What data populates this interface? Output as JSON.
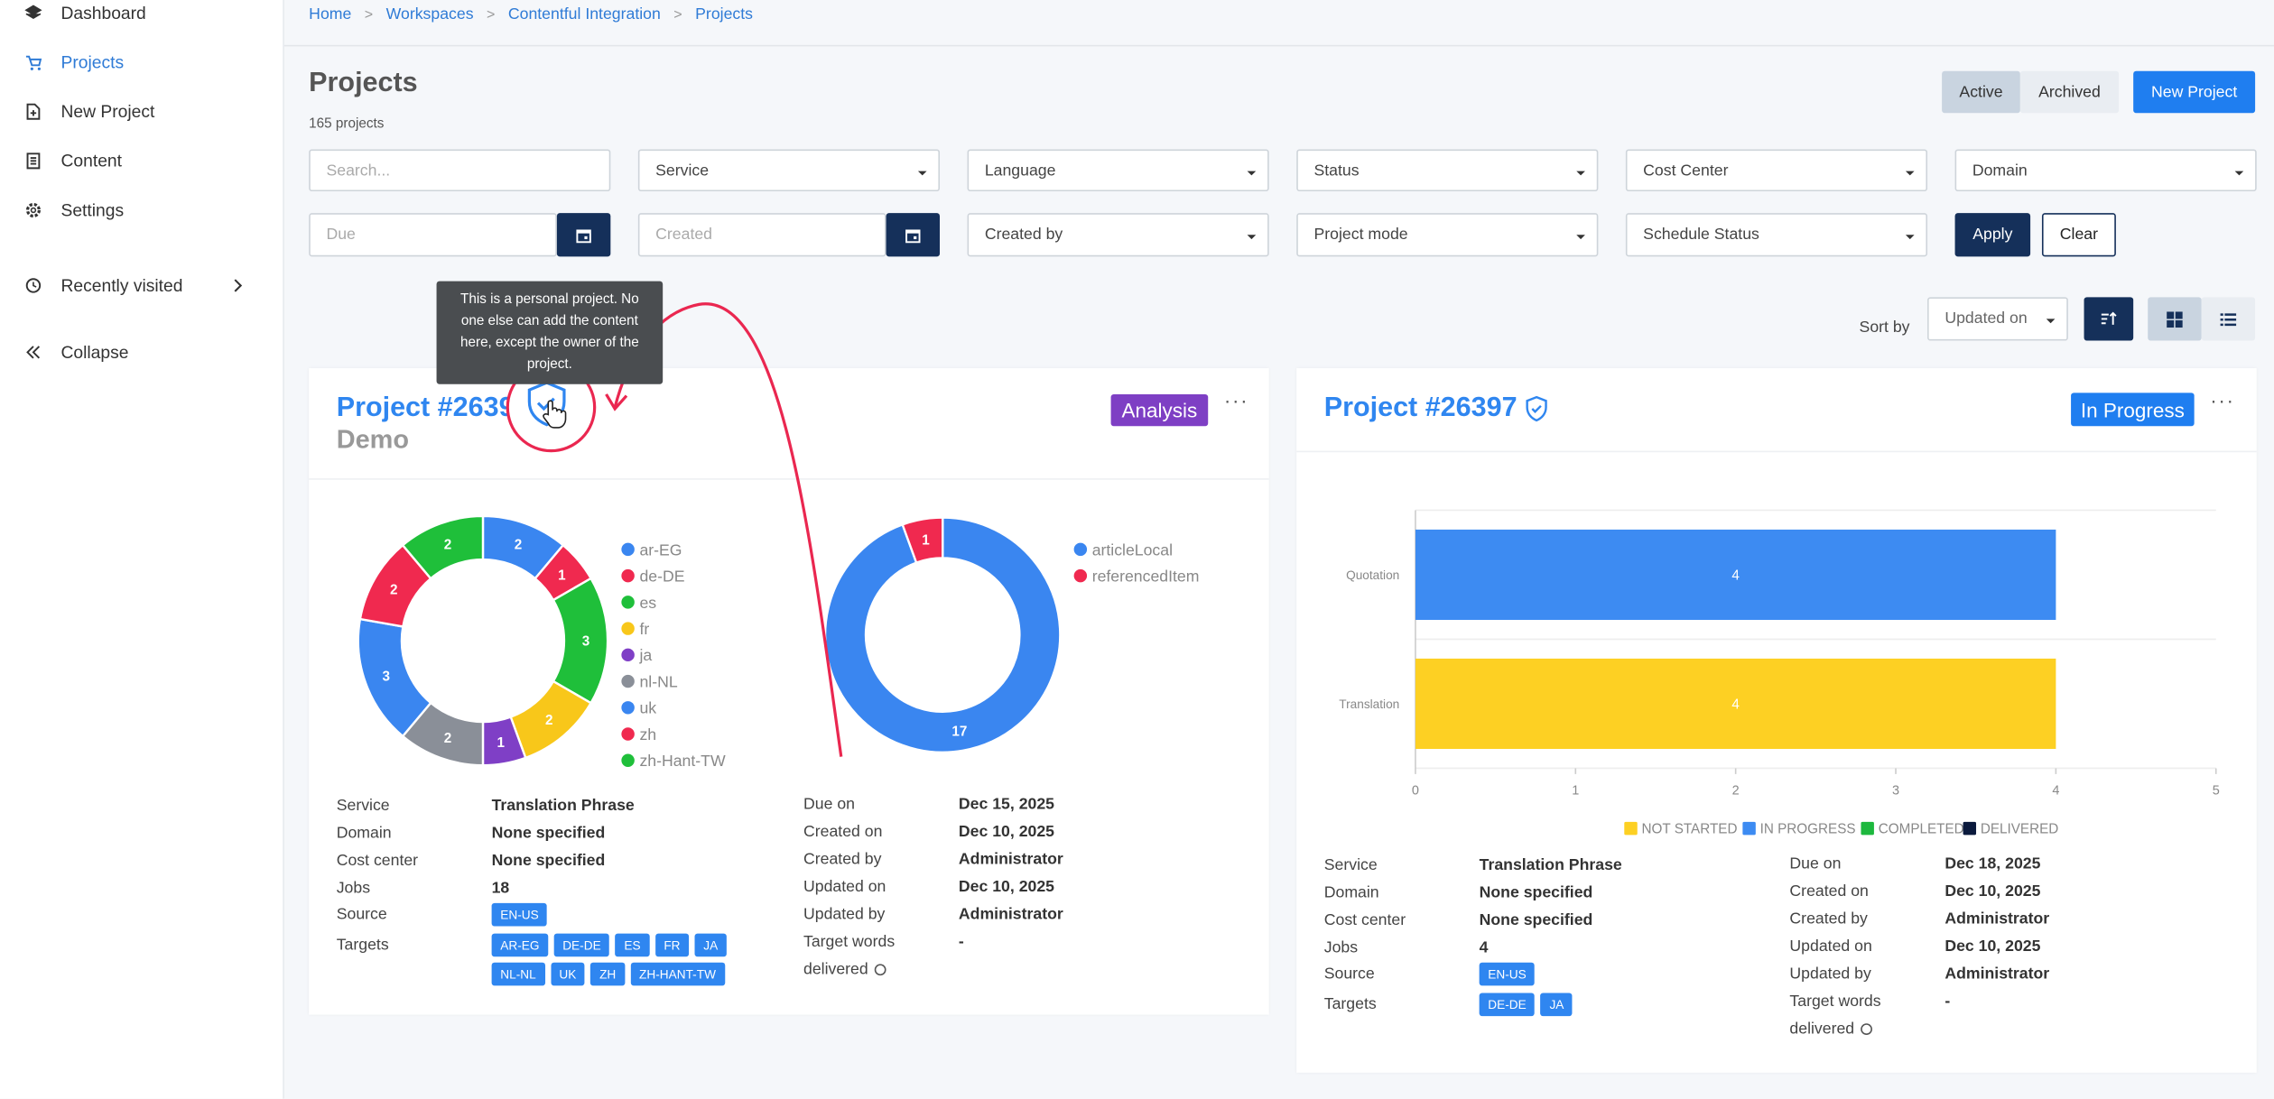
{
  "sidebar": {
    "items": [
      "Dashboard",
      "Projects",
      "New Project",
      "Content",
      "Settings",
      "Recently visited",
      "Collapse"
    ]
  },
  "breadcrumb": [
    "Home",
    "Workspaces",
    "Contentful Integration",
    "Projects"
  ],
  "header": {
    "title": "Projects",
    "count": "165 projects",
    "toggle": [
      "Active",
      "Archived"
    ],
    "new_button": "New Project"
  },
  "filters": {
    "search": "Search...",
    "selects": [
      "Service",
      "Language",
      "Status",
      "Cost Center",
      "Domain"
    ],
    "due": "Due",
    "created": "Created",
    "selects2": [
      "Created by",
      "Project mode",
      "Schedule Status"
    ],
    "apply": "Apply",
    "clear": "Clear"
  },
  "sort": {
    "label": "Sort by",
    "value": "Updated on"
  },
  "tooltip": "This is a personal project. No one else can add the content here, except the owner of the project.",
  "projects": [
    {
      "title": "Project #2639",
      "subtitle": "Demo",
      "status": "Analysis",
      "info": [
        {
          "label": "Service",
          "value": "Translation Phrase"
        },
        {
          "label": "Domain",
          "value": "None specified"
        },
        {
          "label": "Cost center",
          "value": "None specified"
        },
        {
          "label": "Jobs",
          "value": "18"
        },
        {
          "label": "Source",
          "chips": [
            "EN-US"
          ]
        },
        {
          "label": "Targets",
          "chips": [
            "AR-EG",
            "DE-DE",
            "ES",
            "FR",
            "JA",
            "NL-NL",
            "UK",
            "ZH",
            "ZH-HANT-TW"
          ]
        }
      ],
      "dates": [
        {
          "label": "Due on",
          "value": "Dec 15, 2025"
        },
        {
          "label": "Created on",
          "value": "Dec 10, 2025"
        },
        {
          "label": "Created by",
          "value": "Administrator"
        },
        {
          "label": "Updated on",
          "value": "Dec 10, 2025"
        },
        {
          "label": "Updated by",
          "value": "Administrator"
        },
        {
          "label": "Target words delivered",
          "value": "-"
        }
      ]
    },
    {
      "title": "Project #26397",
      "status": "In Progress",
      "info": [
        {
          "label": "Service",
          "value": "Translation Phrase"
        },
        {
          "label": "Domain",
          "value": "None specified"
        },
        {
          "label": "Cost center",
          "value": "None specified"
        },
        {
          "label": "Jobs",
          "value": "4"
        },
        {
          "label": "Source",
          "chips": [
            "EN-US"
          ]
        },
        {
          "label": "Targets",
          "chips": [
            "DE-DE",
            "JA"
          ]
        }
      ],
      "dates": [
        {
          "label": "Due on",
          "value": "Dec 18, 2025"
        },
        {
          "label": "Created on",
          "value": "Dec 10, 2025"
        },
        {
          "label": "Created by",
          "value": "Administrator"
        },
        {
          "label": "Updated on",
          "value": "Dec 10, 2025"
        },
        {
          "label": "Updated by",
          "value": "Administrator"
        },
        {
          "label": "Target words delivered",
          "value": "-"
        }
      ]
    }
  ],
  "chart_data": [
    {
      "type": "pie",
      "donut": true,
      "categories": [
        "ar-EG",
        "de-DE",
        "es",
        "fr",
        "ja",
        "nl-NL",
        "uk",
        "zh",
        "zh-Hant-TW"
      ],
      "values": [
        2,
        1,
        3,
        2,
        1,
        2,
        3,
        2,
        2
      ],
      "colors": [
        "#3a86f0",
        "#f0294f",
        "#1fbf3a",
        "#f8c71a",
        "#7f3fc6",
        "#8a8f98",
        "#3a86f0",
        "#f0294f",
        "#1fbf3a"
      ]
    },
    {
      "type": "pie",
      "donut": true,
      "categories": [
        "articleLocal",
        "referencedItem"
      ],
      "values": [
        17,
        1
      ],
      "colors": [
        "#3a86f0",
        "#f0294f"
      ]
    },
    {
      "type": "bar",
      "orientation": "horizontal",
      "stacked": true,
      "categories": [
        "Quotation",
        "Translation"
      ],
      "series": [
        {
          "name": "NOT STARTED",
          "color": "#fdd023",
          "values": [
            0,
            4
          ]
        },
        {
          "name": "IN PROGRESS",
          "color": "#3d8bf2",
          "values": [
            4,
            0
          ]
        },
        {
          "name": "COMPLETED",
          "color": "#1db83e",
          "values": [
            0,
            0
          ]
        },
        {
          "name": "DELIVERED",
          "color": "#0b1a3d",
          "values": [
            0,
            0
          ]
        }
      ],
      "xlim": [
        0,
        5
      ],
      "xticks": [
        0,
        1,
        2,
        3,
        4,
        5
      ],
      "grid": true
    }
  ]
}
